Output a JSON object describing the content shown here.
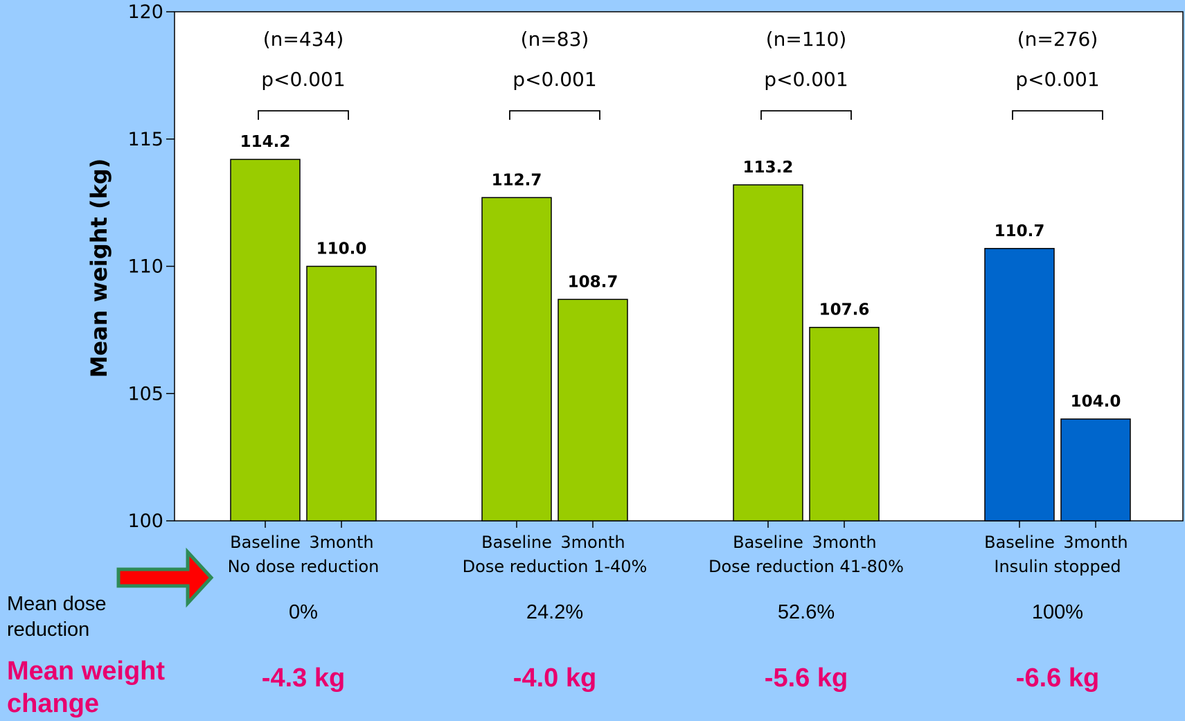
{
  "chart_data": {
    "type": "bar",
    "title": "",
    "xlabel": "",
    "ylabel": "Mean weight (kg)",
    "ylim": [
      100,
      120
    ],
    "yticks": [
      100,
      105,
      110,
      115,
      120
    ],
    "grid": false,
    "groups": [
      {
        "name": "No dose reduction",
        "n_label": "(n=434)",
        "p_label": "p<0.001",
        "bars": [
          {
            "label": "Baseline",
            "value": 114.2,
            "value_label": "114.2",
            "color": "#99cc00"
          },
          {
            "label": "3month",
            "value": 110.0,
            "value_label": "110.0",
            "color": "#99cc00"
          }
        ],
        "dose_reduction": "0%",
        "weight_change": "-4.3 kg"
      },
      {
        "name": "Dose reduction 1-40%",
        "n_label": "(n=83)",
        "p_label": "p<0.001",
        "bars": [
          {
            "label": "Baseline",
            "value": 112.7,
            "value_label": "112.7",
            "color": "#99cc00"
          },
          {
            "label": "3month",
            "value": 108.7,
            "value_label": "108.7",
            "color": "#99cc00"
          }
        ],
        "dose_reduction": "24.2%",
        "weight_change": "-4.0 kg"
      },
      {
        "name": "Dose reduction 41-80%",
        "n_label": "(n=110)",
        "p_label": "p<0.001",
        "bars": [
          {
            "label": "Baseline",
            "value": 113.2,
            "value_label": "113.2",
            "color": "#99cc00"
          },
          {
            "label": "3month",
            "value": 107.6,
            "value_label": "107.6",
            "color": "#99cc00"
          }
        ],
        "dose_reduction": "52.6%",
        "weight_change": "-5.6 kg"
      },
      {
        "name": "Insulin stopped",
        "n_label": "(n=276)",
        "p_label": "p<0.001",
        "bars": [
          {
            "label": "Baseline",
            "value": 110.7,
            "value_label": "110.7",
            "color": "#0066cc"
          },
          {
            "label": "3month",
            "value": 104.0,
            "value_label": "104.0",
            "color": "#0066cc"
          }
        ],
        "dose_reduction": "100%",
        "weight_change": "-6.6 kg"
      }
    ]
  },
  "rows": {
    "dose_label": "Mean dose reduction",
    "change_label": "Mean weight change"
  },
  "colors": {
    "background": "#99ccff",
    "plot_background": "#ffffff",
    "green_bar": "#99cc00",
    "blue_bar": "#0066cc",
    "change_text": "#e8006e",
    "arrow_fill": "#ff0000",
    "arrow_border": "#2e8b57"
  },
  "icons": {
    "arrow": "right-arrow-icon"
  }
}
